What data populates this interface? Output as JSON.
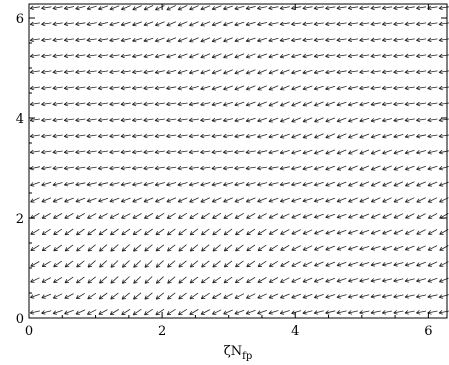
{
  "chart_data": {
    "type": "quiver",
    "title": "",
    "xlabel": "ζN",
    "xlabel_subscript": "fp",
    "ylabel": "",
    "xlim": [
      0,
      6.28
    ],
    "ylim": [
      0,
      6.28
    ],
    "x_ticks": [
      0,
      2,
      4,
      6
    ],
    "y_ticks": [
      0,
      2,
      4,
      6
    ],
    "x_tick_labels": [
      "0",
      "2",
      "4",
      "6"
    ],
    "y_tick_labels": [
      "0",
      "2",
      "4",
      "6"
    ],
    "grid": false,
    "field": {
      "nx": 37,
      "ny": 20,
      "description_of_direction": "vectors point mostly toward negative x (leftward) with a downward component that varies with the row"
    },
    "colors": {
      "arrows": "#222222",
      "frame": "#000000",
      "background": "#ffffff"
    }
  }
}
